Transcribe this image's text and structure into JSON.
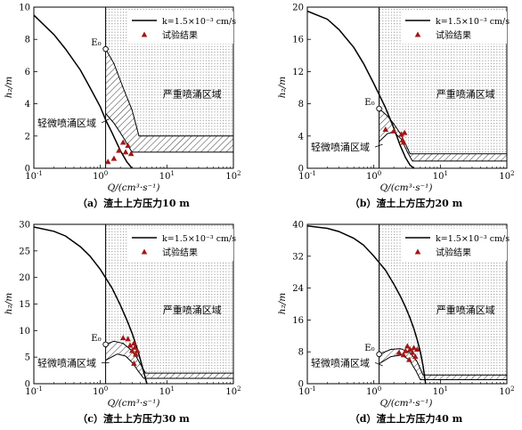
{
  "chart_data": [
    {
      "type": "line",
      "caption": "（a）渣土上方压力10 m",
      "xscale": "log",
      "xlim": [
        0.1,
        100
      ],
      "ylim": [
        0,
        10
      ],
      "yticks": [
        0,
        2,
        4,
        6,
        8,
        10
      ],
      "xlabel": "Q/(cm³·s⁻¹)",
      "ylabel": "h₂/m",
      "legend": {
        "line": "k=1.5×10⁻³ cm/s",
        "marker": "试验结果",
        "placement": "top-right"
      },
      "region_labels": {
        "severe": "严重喷涌区域",
        "mild": "轻微喷涌区域"
      },
      "e0_label": "E₀",
      "threshold_x": 1.2,
      "series": [
        {
          "name": "k=1.5×10⁻³ cm/s",
          "x": [
            0.1,
            0.2,
            0.3,
            0.5,
            0.7,
            1.0,
            1.2,
            1.5,
            2.0,
            2.5,
            3.0
          ],
          "y": [
            9.5,
            8.3,
            7.4,
            6.1,
            5.0,
            3.8,
            3.0,
            2.2,
            1.1,
            0.4,
            0.0
          ]
        },
        {
          "name": "试验结果",
          "x": [
            1.3,
            1.6,
            1.9,
            2.2,
            2.4,
            2.6,
            2.9
          ],
          "y": [
            0.4,
            0.6,
            1.1,
            1.6,
            1.0,
            1.4,
            0.9
          ]
        }
      ],
      "severe_boundary": {
        "x": [
          1.2,
          1.6,
          2.2,
          3.0,
          3.8,
          100
        ],
        "y": [
          7.4,
          6.5,
          5.0,
          3.6,
          2.0,
          2.0
        ]
      },
      "mild_boundary": {
        "x": [
          1.2,
          1.6,
          2.0,
          2.3,
          2.6,
          3.0,
          3.6,
          100
        ],
        "y": [
          3.4,
          2.8,
          2.2,
          1.8,
          1.4,
          1.0,
          1.0,
          1.0
        ]
      },
      "e0_point": {
        "x": 1.2,
        "y": 7.4
      }
    },
    {
      "type": "line",
      "caption": "（b）渣土上方压力20 m",
      "xscale": "log",
      "xlim": [
        0.1,
        100
      ],
      "ylim": [
        0,
        20
      ],
      "yticks": [
        0,
        4,
        8,
        12,
        16,
        20
      ],
      "xlabel": "Q/(cm³·s⁻¹)",
      "ylabel": "h₂/m",
      "legend": {
        "line": "k=1.5×10⁻³ cm/s",
        "marker": "试验结果",
        "placement": "top-right"
      },
      "region_labels": {
        "severe": "严重喷涌区域",
        "mild": "轻微喷涌区域"
      },
      "e0_label": "E₀",
      "threshold_x": 1.2,
      "series": [
        {
          "name": "k=1.5×10⁻³ cm/s",
          "x": [
            0.1,
            0.2,
            0.3,
            0.5,
            0.7,
            1.0,
            1.5,
            2.0,
            2.5,
            3.0,
            3.5,
            4.0
          ],
          "y": [
            19.5,
            18.5,
            17.2,
            15.0,
            13.0,
            10.5,
            7.5,
            5.0,
            2.8,
            1.3,
            0.4,
            0.0
          ]
        },
        {
          "name": "试验结果",
          "x": [
            1.5,
            2.0,
            2.6,
            2.7,
            2.8,
            2.9
          ],
          "y": [
            4.8,
            4.6,
            4.2,
            3.5,
            3.2,
            4.4
          ]
        }
      ],
      "severe_boundary": {
        "x": [
          1.2,
          1.6,
          2.0,
          2.5,
          3.0,
          3.5,
          100
        ],
        "y": [
          7.4,
          6.5,
          5.5,
          4.3,
          3.0,
          1.8,
          1.8
        ]
      },
      "mild_boundary": {
        "x": [
          1.2,
          1.6,
          2.0,
          2.6,
          3.2,
          3.8,
          100
        ],
        "y": [
          3.3,
          4.3,
          4.5,
          3.6,
          2.0,
          0.9,
          0.9
        ]
      },
      "e0_point": {
        "x": 1.2,
        "y": 7.4
      }
    },
    {
      "type": "line",
      "caption": "（c）渣土上方压力30 m",
      "xscale": "log",
      "xlim": [
        0.1,
        100
      ],
      "ylim": [
        0,
        30
      ],
      "yticks": [
        0,
        5,
        10,
        15,
        20,
        25,
        30
      ],
      "xlabel": "Q/(cm³·s⁻¹)",
      "ylabel": "h₂/m",
      "legend": {
        "line": "k=1.5×10⁻³ cm/s",
        "marker": "试验结果",
        "placement": "top-right"
      },
      "region_labels": {
        "severe": "严重喷涌区域",
        "mild": "轻微喷涌区域"
      },
      "e0_label": "E₀",
      "threshold_x": 1.2,
      "series": [
        {
          "name": "k=1.5×10⁻³ cm/s",
          "x": [
            0.1,
            0.2,
            0.3,
            0.5,
            0.7,
            1.0,
            1.5,
            2.0,
            2.5,
            3.0,
            3.5,
            4.0,
            4.5,
            5.0
          ],
          "y": [
            29.5,
            28.7,
            27.8,
            25.8,
            24.0,
            21.5,
            18.0,
            14.8,
            12.0,
            9.5,
            7.0,
            4.5,
            2.2,
            0.0
          ]
        },
        {
          "name": "试验结果",
          "x": [
            2.2,
            2.6,
            2.8,
            3.0,
            3.2,
            3.3,
            3.4,
            3.6,
            3.2
          ],
          "y": [
            8.6,
            8.4,
            7.2,
            6.2,
            7.6,
            6.8,
            5.5,
            6.2,
            3.8
          ]
        }
      ],
      "severe_boundary": {
        "x": [
          1.2,
          1.6,
          2.2,
          2.8,
          3.5,
          4.2,
          4.8,
          100
        ],
        "y": [
          7.4,
          8.0,
          7.6,
          6.5,
          5.0,
          3.2,
          2.0,
          2.0
        ]
      },
      "mild_boundary": {
        "x": [
          1.2,
          1.8,
          2.4,
          3.0,
          3.8,
          4.5,
          100
        ],
        "y": [
          4.4,
          5.6,
          5.2,
          4.0,
          2.2,
          1.0,
          1.0
        ]
      },
      "e0_point": {
        "x": 1.2,
        "y": 7.4
      }
    },
    {
      "type": "line",
      "caption": "（d）渣土上方压力40 m",
      "xscale": "log",
      "xlim": [
        0.1,
        100
      ],
      "ylim": [
        0,
        40
      ],
      "yticks": [
        0,
        8,
        16,
        24,
        32,
        40
      ],
      "xlabel": "Q/(cm³·s⁻¹)",
      "ylabel": "h₂/m",
      "legend": {
        "line": "k=1.5×10⁻³ cm/s",
        "marker": "试验结果",
        "placement": "top-right"
      },
      "region_labels": {
        "severe": "严重喷涌区域",
        "mild": "轻微喷涌区域"
      },
      "e0_label": "E₀",
      "threshold_x": 1.2,
      "series": [
        {
          "name": "k=1.5×10⁻³ cm/s",
          "x": [
            0.1,
            0.2,
            0.3,
            0.5,
            0.7,
            1.0,
            1.5,
            2.0,
            2.5,
            3.0,
            3.5,
            4.0,
            4.5,
            5.0,
            5.5,
            6.0
          ],
          "y": [
            39.6,
            39.0,
            38.2,
            36.5,
            34.8,
            32.0,
            28.5,
            25.0,
            22.0,
            19.2,
            16.5,
            13.8,
            11.0,
            8.0,
            4.5,
            0.0
          ]
        },
        {
          "name": "试验结果",
          "x": [
            2.4,
            2.8,
            3.2,
            3.5,
            3.8,
            4.0,
            4.2,
            4.5,
            3.4,
            3.0
          ],
          "y": [
            7.8,
            7.2,
            9.4,
            8.6,
            7.8,
            9.0,
            6.8,
            8.6,
            6.0,
            8.2
          ]
        }
      ],
      "severe_boundary": {
        "x": [
          1.2,
          1.8,
          2.5,
          3.5,
          4.5,
          5.5,
          100
        ],
        "y": [
          7.4,
          8.6,
          8.8,
          7.8,
          5.5,
          2.2,
          2.2
        ]
      },
      "mild_boundary": {
        "x": [
          1.2,
          1.8,
          2.6,
          3.4,
          4.3,
          5.0,
          100
        ],
        "y": [
          5.0,
          6.8,
          7.2,
          6.0,
          3.2,
          1.0,
          1.0
        ]
      },
      "e0_point": {
        "x": 1.2,
        "y": 7.4
      }
    }
  ]
}
